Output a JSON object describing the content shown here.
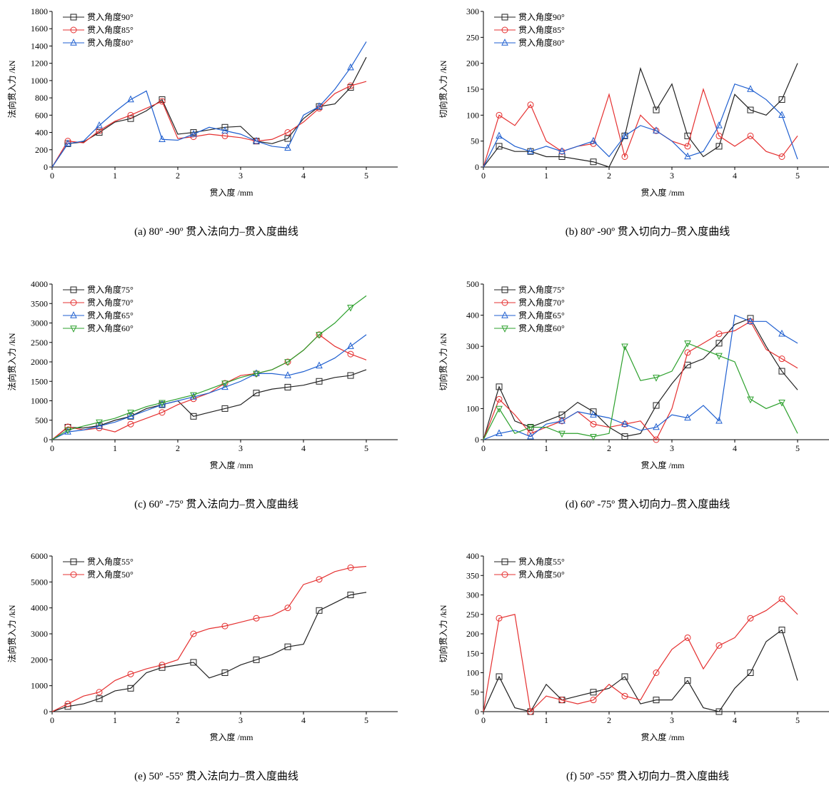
{
  "chart_data": [
    {
      "type": "line",
      "caption": "(a) 80º -90º 贯入法向力–贯入度曲线",
      "x_label": "贯入度 /mm",
      "y_label": "法向贯入力 /kN",
      "x": [
        0,
        0.25,
        0.5,
        0.75,
        1,
        1.25,
        1.5,
        1.75,
        2,
        2.25,
        2.5,
        2.75,
        3,
        3.25,
        3.5,
        3.75,
        4,
        4.25,
        4.5,
        4.75,
        5
      ],
      "xlim": [
        0,
        5.5
      ],
      "xticks": [
        0,
        1,
        2,
        3,
        4,
        5
      ],
      "ylim": [
        0,
        1800
      ],
      "yticks": [
        0,
        200,
        400,
        600,
        800,
        1000,
        1200,
        1400,
        1600,
        1800
      ],
      "legend": "upper left",
      "series": [
        {
          "name": "贯入角度90°",
          "color": "#222222",
          "marker": "square",
          "values": [
            0,
            270,
            290,
            400,
            520,
            560,
            650,
            780,
            380,
            400,
            430,
            460,
            470,
            300,
            270,
            330,
            560,
            700,
            730,
            920,
            1270
          ]
        },
        {
          "name": "贯入角度85°",
          "color": "#e53030",
          "marker": "circle",
          "values": [
            0,
            300,
            280,
            420,
            530,
            600,
            680,
            760,
            330,
            350,
            380,
            360,
            340,
            300,
            320,
            400,
            520,
            680,
            850,
            940,
            990
          ]
        },
        {
          "name": "贯入角度80°",
          "color": "#1f5fd0",
          "marker": "triangle",
          "values": [
            0,
            270,
            300,
            480,
            640,
            780,
            880,
            320,
            310,
            380,
            460,
            420,
            380,
            300,
            240,
            220,
            600,
            700,
            900,
            1150,
            1450
          ]
        }
      ]
    },
    {
      "type": "line",
      "caption": "(b) 80º -90º 贯入切向力–贯入度曲线",
      "x_label": "贯入度 /mm",
      "y_label": "切向贯入力 /kN",
      "x": [
        0,
        0.25,
        0.5,
        0.75,
        1,
        1.25,
        1.5,
        1.75,
        2,
        2.25,
        2.5,
        2.75,
        3,
        3.25,
        3.5,
        3.75,
        4,
        4.25,
        4.5,
        4.75,
        5
      ],
      "xlim": [
        0,
        5.5
      ],
      "xticks": [
        0,
        1,
        2,
        3,
        4,
        5
      ],
      "ylim": [
        0,
        300
      ],
      "yticks": [
        0,
        50,
        100,
        150,
        200,
        250,
        300
      ],
      "legend": "upper left",
      "series": [
        {
          "name": "贯入角度90°",
          "color": "#222222",
          "marker": "square",
          "values": [
            0,
            40,
            30,
            30,
            20,
            20,
            15,
            10,
            0,
            60,
            190,
            110,
            160,
            60,
            20,
            40,
            140,
            110,
            100,
            130,
            200
          ]
        },
        {
          "name": "贯入角度85°",
          "color": "#e53030",
          "marker": "circle",
          "values": [
            0,
            100,
            80,
            120,
            50,
            30,
            40,
            45,
            140,
            20,
            100,
            70,
            50,
            40,
            150,
            60,
            40,
            60,
            30,
            20,
            60
          ]
        },
        {
          "name": "贯入角度80°",
          "color": "#1f5fd0",
          "marker": "triangle",
          "values": [
            0,
            60,
            40,
            30,
            40,
            30,
            40,
            50,
            20,
            60,
            80,
            70,
            50,
            20,
            30,
            80,
            160,
            150,
            130,
            100,
            15
          ]
        }
      ]
    },
    {
      "type": "line",
      "caption": "(c) 60º -75º 贯入法向力–贯入度曲线",
      "x_label": "贯入度 /mm",
      "y_label": "法向贯入力 /kN",
      "x": [
        0,
        0.25,
        0.5,
        0.75,
        1,
        1.25,
        1.5,
        1.75,
        2,
        2.25,
        2.5,
        2.75,
        3,
        3.25,
        3.5,
        3.75,
        4,
        4.25,
        4.5,
        4.75,
        5
      ],
      "xlim": [
        0,
        5.5
      ],
      "xticks": [
        0,
        1,
        2,
        3,
        4,
        5
      ],
      "ylim": [
        0,
        4000
      ],
      "yticks": [
        0,
        500,
        1000,
        1500,
        2000,
        2500,
        3000,
        3500,
        4000
      ],
      "legend": "upper left",
      "series": [
        {
          "name": "贯入角度75°",
          "color": "#222222",
          "marker": "square",
          "values": [
            0,
            320,
            300,
            360,
            500,
            600,
            800,
            900,
            1000,
            600,
            700,
            800,
            900,
            1200,
            1300,
            1350,
            1400,
            1500,
            1600,
            1650,
            1800
          ]
        },
        {
          "name": "贯入角度70°",
          "color": "#e53030",
          "marker": "circle",
          "values": [
            0,
            330,
            250,
            300,
            200,
            400,
            550,
            700,
            900,
            1050,
            1200,
            1450,
            1650,
            1700,
            1800,
            2000,
            2300,
            2700,
            2400,
            2200,
            2050
          ]
        },
        {
          "name": "贯入角度65°",
          "color": "#1f5fd0",
          "marker": "triangle",
          "values": [
            0,
            200,
            250,
            350,
            450,
            600,
            750,
            900,
            1000,
            1100,
            1200,
            1350,
            1500,
            1700,
            1700,
            1650,
            1750,
            1900,
            2100,
            2400,
            2700
          ]
        },
        {
          "name": "贯入角度60°",
          "color": "#2ca02c",
          "marker": "triangle-down",
          "values": [
            0,
            250,
            350,
            450,
            550,
            700,
            850,
            950,
            1050,
            1150,
            1300,
            1450,
            1600,
            1700,
            1800,
            2000,
            2300,
            2700,
            3000,
            3400,
            3700
          ]
        }
      ]
    },
    {
      "type": "line",
      "caption": "(d) 60º -75º 贯入切向力–贯入度曲线",
      "x_label": "贯入度 /mm",
      "y_label": "切向贯入力 /kN",
      "x": [
        0,
        0.25,
        0.5,
        0.75,
        1,
        1.25,
        1.5,
        1.75,
        2,
        2.25,
        2.5,
        2.75,
        3,
        3.25,
        3.5,
        3.75,
        4,
        4.25,
        4.5,
        4.75,
        5
      ],
      "xlim": [
        0,
        5.5
      ],
      "xticks": [
        0,
        1,
        2,
        3,
        4,
        5
      ],
      "ylim": [
        0,
        500
      ],
      "yticks": [
        0,
        100,
        200,
        300,
        400,
        500
      ],
      "legend": "upper left",
      "series": [
        {
          "name": "贯入角度75°",
          "color": "#222222",
          "marker": "square",
          "values": [
            0,
            170,
            60,
            40,
            60,
            80,
            120,
            90,
            40,
            10,
            20,
            110,
            180,
            240,
            260,
            310,
            370,
            390,
            300,
            220,
            160
          ]
        },
        {
          "name": "贯入角度70°",
          "color": "#e53030",
          "marker": "circle",
          "values": [
            0,
            130,
            80,
            20,
            40,
            60,
            90,
            50,
            40,
            50,
            60,
            0,
            100,
            280,
            310,
            340,
            350,
            380,
            290,
            260,
            230
          ]
        },
        {
          "name": "贯入角度65°",
          "color": "#1f5fd0",
          "marker": "triangle",
          "values": [
            0,
            20,
            30,
            10,
            50,
            60,
            90,
            80,
            70,
            50,
            30,
            40,
            80,
            70,
            110,
            60,
            400,
            380,
            380,
            340,
            310
          ]
        },
        {
          "name": "贯入角度60°",
          "color": "#2ca02c",
          "marker": "triangle-down",
          "values": [
            0,
            100,
            20,
            40,
            40,
            20,
            20,
            10,
            20,
            300,
            190,
            200,
            220,
            310,
            290,
            270,
            250,
            130,
            100,
            120,
            20
          ]
        }
      ]
    },
    {
      "type": "line",
      "caption": "(e) 50º -55º 贯入法向力–贯入度曲线",
      "x_label": "贯入度 /mm",
      "y_label": "法向贯入力 /kN",
      "x": [
        0,
        0.25,
        0.5,
        0.75,
        1,
        1.25,
        1.5,
        1.75,
        2,
        2.25,
        2.5,
        2.75,
        3,
        3.25,
        3.5,
        3.75,
        4,
        4.25,
        4.5,
        4.75,
        5
      ],
      "xlim": [
        0,
        5.5
      ],
      "xticks": [
        0,
        1,
        2,
        3,
        4,
        5
      ],
      "ylim": [
        0,
        6000
      ],
      "yticks": [
        0,
        1000,
        2000,
        3000,
        4000,
        5000,
        6000
      ],
      "legend": "upper left",
      "series": [
        {
          "name": "贯入角度55°",
          "color": "#222222",
          "marker": "square",
          "values": [
            0,
            200,
            300,
            500,
            800,
            900,
            1500,
            1700,
            1800,
            1900,
            1300,
            1500,
            1800,
            2000,
            2200,
            2500,
            2600,
            3900,
            4200,
            4500,
            4600
          ]
        },
        {
          "name": "贯入角度50°",
          "color": "#e53030",
          "marker": "circle",
          "values": [
            0,
            300,
            600,
            750,
            1200,
            1450,
            1650,
            1800,
            2000,
            3000,
            3200,
            3300,
            3450,
            3600,
            3700,
            4000,
            4900,
            5100,
            5400,
            5550,
            5600
          ]
        }
      ]
    },
    {
      "type": "line",
      "caption": "(f) 50º -55º 贯入切向力–贯入度曲线",
      "x_label": "贯入度 /mm",
      "y_label": "切向贯入力 /kN",
      "x": [
        0,
        0.25,
        0.5,
        0.75,
        1,
        1.25,
        1.5,
        1.75,
        2,
        2.25,
        2.5,
        2.75,
        3,
        3.25,
        3.5,
        3.75,
        4,
        4.25,
        4.5,
        4.75,
        5
      ],
      "xlim": [
        0,
        5.5
      ],
      "xticks": [
        0,
        1,
        2,
        3,
        4,
        5
      ],
      "ylim": [
        0,
        400
      ],
      "yticks": [
        0,
        50,
        100,
        150,
        200,
        250,
        300,
        350,
        400
      ],
      "legend": "upper left",
      "series": [
        {
          "name": "贯入角度55°",
          "color": "#222222",
          "marker": "square",
          "values": [
            0,
            90,
            10,
            0,
            70,
            30,
            40,
            50,
            60,
            90,
            20,
            30,
            30,
            80,
            10,
            0,
            60,
            100,
            180,
            210,
            80
          ]
        },
        {
          "name": "贯入角度50°",
          "color": "#e53030",
          "marker": "circle",
          "values": [
            0,
            240,
            250,
            0,
            40,
            30,
            20,
            30,
            70,
            40,
            30,
            100,
            160,
            190,
            110,
            170,
            190,
            240,
            260,
            290,
            250
          ]
        }
      ]
    }
  ]
}
